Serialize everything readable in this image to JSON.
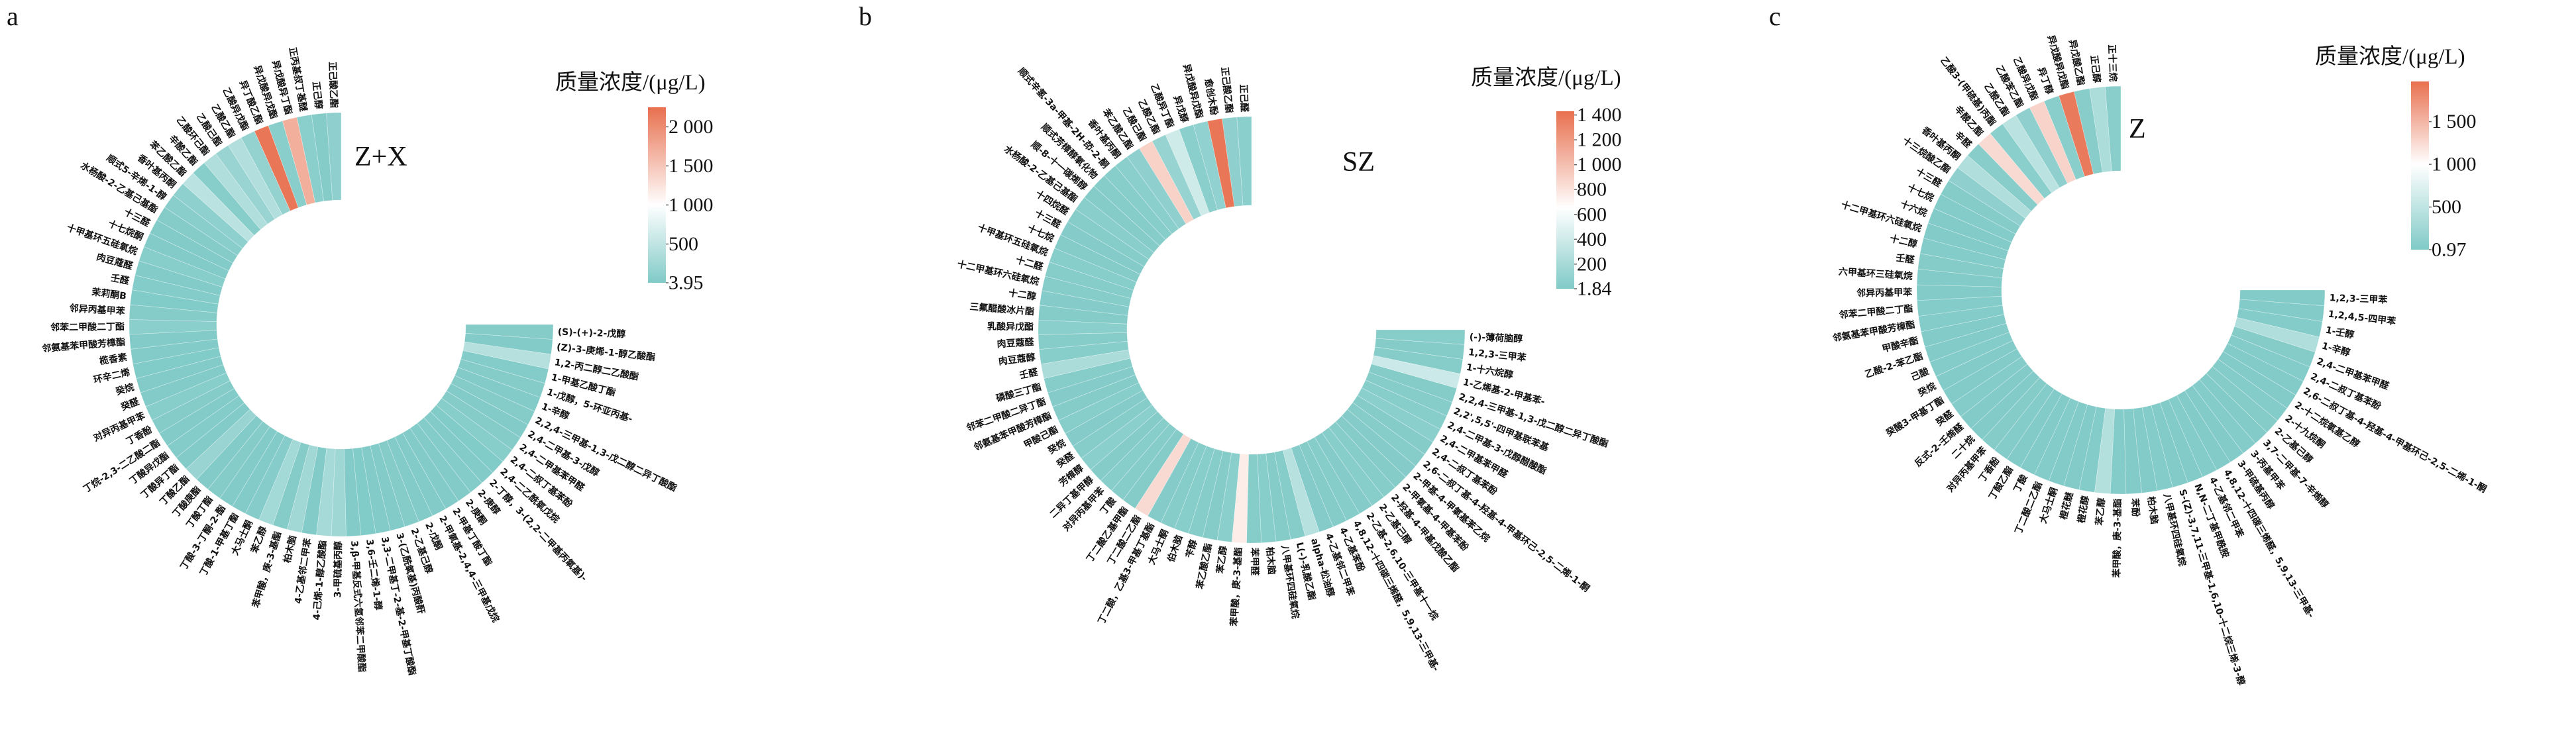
{
  "chart_data": [
    {
      "type": "heatmap",
      "panel_letter": "a",
      "center_label": "Z+X",
      "legend_title": "质量浓度/(μg/L)",
      "legend_ticks": [
        {
          "value": 2000,
          "label": "2 000"
        },
        {
          "value": 1500,
          "label": "1 500"
        },
        {
          "value": 1000,
          "label": "1 000"
        },
        {
          "value": 500,
          "label": "500"
        },
        {
          "value": 3.95,
          "label": "3.95"
        }
      ],
      "scale_min": 3.95,
      "scale_mid": 1000,
      "scale_max": 2250,
      "colors": {
        "low": "#80cac7",
        "mid": "#ffffff",
        "high": "#e8704f"
      },
      "categories": [
        "正己酸乙酯",
        "正己醇",
        "正丙基叔丁基醚",
        "异戊酸异丁酯",
        "异戊酸异戊酯",
        "异丁酸乙酯",
        "乙酸异戊酯",
        "乙酸乙酯",
        "乙酸己酯",
        "乙酸环己酯",
        "辛酸乙酯",
        "苯乙酸乙酯",
        "香叶基丙酮",
        "顺式5-辛烯-1-醇",
        "水杨酸-2-乙基己基酯",
        "十三醛",
        "十七烷酮",
        "十甲基环五硅氧烷",
        "肉豆蔻醛",
        "壬醛",
        "茉莉酮B",
        "邻异丙基甲苯",
        "邻苯二甲酸二丁酯",
        "邻氨基苯甲酸芳樟酯",
        "榄香素",
        "环辛二烯",
        "癸烷",
        "癸醛",
        "对异丙基甲苯",
        "丁香酚",
        "丁烷-2,3-二乙酸二酯",
        "丁酸异戊酯",
        "丁酸异丁酯",
        "丁酸乙酯",
        "丁酸庚酯",
        "丁酸丁酯",
        "丁酸-3-丁酮-2-酯",
        "丁酸-1-甲基丁酯",
        "大马士酮",
        "苯乙醇",
        "苯甲酸，庚-3-基酯",
        "柏木脑",
        "4-乙基邻二甲苯",
        "4-己烯-1-醇乙酸酯",
        "3-甲硫基丙醇",
        "3,β-甲基反式六氢邻苯二甲酸酯",
        "3,6-壬二烯-1-醇",
        "3,3-二甲基丁-2-基-2-甲基丁酸酯",
        "3-(乙酰氧基)丙酸酐",
        "2-乙基己醇",
        "2-戊酮",
        "2-甲氧基-2,4,4-三甲基戊烷",
        "2-甲基丁酸丁酯",
        "2-庚酮",
        "2-庚醇",
        "2-丁醇，3-(2,2-二甲基丙氧基)-",
        "2,4-二乙酰氧戊烷",
        "2,4-二叔丁基苯酚",
        "2,4-二甲基苯甲醛",
        "2,4-二甲基-3-戊醇",
        "2,2,4-三甲基-1,3-戊二醇二异丁酸酯",
        "1-辛醇",
        "1-戊醇，5-环亚丙基-",
        "1-甲基乙酸丁酯",
        "1,2-丙二醇二乙酸酯",
        "(Z)-3-庚烯-1-醇乙酸酯",
        "(S)-(+)-2-戊醇"
      ],
      "values": [
        120,
        40,
        90,
        1700,
        80,
        2200,
        150,
        400,
        200,
        380,
        60,
        450,
        110,
        80,
        40,
        30,
        25,
        60,
        20,
        35,
        15,
        40,
        90,
        30,
        20,
        15,
        30,
        25,
        60,
        40,
        20,
        35,
        30,
        200,
        25,
        45,
        30,
        20,
        50,
        280,
        40,
        260,
        20,
        300,
        250,
        20,
        15,
        30,
        25,
        40,
        20,
        30,
        25,
        20,
        35,
        30,
        15,
        60,
        40,
        30,
        45,
        20,
        40,
        35,
        420,
        30,
        40
      ]
    },
    {
      "type": "heatmap",
      "panel_letter": "b",
      "center_label": "SZ",
      "legend_title": "质量浓度/(μg/L)",
      "legend_ticks": [
        {
          "value": 1400,
          "label": "1 400"
        },
        {
          "value": 1200,
          "label": "1 200"
        },
        {
          "value": 1000,
          "label": "1 000"
        },
        {
          "value": 800,
          "label": "800"
        },
        {
          "value": 600,
          "label": "600"
        },
        {
          "value": 400,
          "label": "400"
        },
        {
          "value": 200,
          "label": "200"
        },
        {
          "value": 1.84,
          "label": "1.84"
        }
      ],
      "scale_min": 1.84,
      "scale_mid": 650,
      "scale_max": 1430,
      "colors": {
        "low": "#80cac7",
        "mid": "#ffffff",
        "high": "#e8704f"
      },
      "categories": [
        "正己醛",
        "正己酸乙酯",
        "愈创木酚",
        "异戊酸异戊酯",
        "异戊醇",
        "乙酸异丁酯",
        "乙酸乙酯",
        "乙酸己酯",
        "苯乙酸乙酯",
        "香叶基丙酮",
        "顺式辛氢-3a-甲基-2H-茚-2-酮",
        "顺式芳樟醇氧化物",
        "顺-8-十一碳烯醇",
        "水杨酸-2-乙基己基酯",
        "十四烷醛",
        "十三醛",
        "十七烷",
        "十甲基环五硅氧烷",
        "十二醛",
        "十二甲基环六硅氧烷",
        "十二醇",
        "三氟醋酸冰片酯",
        "乳酸异戊酯",
        "肉豆蔻醛",
        "肉豆蔻醇",
        "壬醛",
        "磷酸三丁酯",
        "邻苯二甲酸二异丁酯",
        "邻氨基苯甲酸芳樟酯",
        "甲酸己酯",
        "癸烷",
        "癸醛",
        "芳樟醇",
        "二异丁基甲醇",
        "对异丙基甲苯",
        "丁酸",
        "丁二酸乙基甲酯",
        "丁二酸二乙酯",
        "丁二酸，乙基3-甲基丁基酯",
        "大马士酮",
        "伯木脑",
        "苄醇",
        "苯乙酸乙酯",
        "苯乙醇",
        "苯甲酸，庚-3-基酯",
        "苯甲醛",
        "柏木脑",
        "八甲基环四硅氧烷",
        "L(-)-乳酸乙酯",
        "alpha-松油醇",
        "4-乙基邻二甲苯",
        "4-乙基苯酚",
        "4,8,12-十四碳三烯醛，5,9,13-三甲基-",
        "2-乙基-2,6,10-三甲基十一烷",
        "2-乙基己醇",
        "2-羟基-4-甲基戊酸乙酯",
        "2-甲氧基-4-甲基苯酚",
        "2-甲基-4-甲氧基苯乙烷",
        "2,6-二叔丁基-4-羟基-4-甲基环己-2,5-二烯-1-酮",
        "2,4-二叔丁基苯酚",
        "2,4-二甲基苯甲醛",
        "2,4-二甲基-3-戊醇醋酸酯",
        "2,2',5,5'-四甲基联苯基",
        "2,2,4-三甲基-1,3-戊二醇二异丁酸酯",
        "1-乙烯基-2-甲基苯-",
        "1-十六烷醇",
        "1,2,3-三甲苯",
        "(-)-薄荷脑醇"
      ],
      "values": [
        60,
        80,
        1400,
        90,
        60,
        400,
        120,
        900,
        80,
        60,
        40,
        30,
        25,
        50,
        30,
        20,
        25,
        40,
        30,
        35,
        20,
        25,
        60,
        30,
        40,
        220,
        30,
        20,
        25,
        40,
        20,
        30,
        60,
        25,
        40,
        30,
        25,
        850,
        20,
        30,
        40,
        35,
        25,
        60,
        750,
        30,
        40,
        25,
        30,
        280,
        20,
        25,
        30,
        20,
        40,
        30,
        25,
        20,
        30,
        25,
        60,
        40,
        30,
        25,
        380,
        30,
        25,
        40
      ]
    },
    {
      "type": "heatmap",
      "panel_letter": "c",
      "center_label": "Z",
      "legend_title": "质量浓度/(μg/L)",
      "legend_ticks": [
        {
          "value": 1500,
          "label": "1 500"
        },
        {
          "value": 1000,
          "label": "1 000"
        },
        {
          "value": 500,
          "label": "500"
        },
        {
          "value": 0.97,
          "label": "0.97"
        }
      ],
      "scale_min": 0.97,
      "scale_mid": 1000,
      "scale_max": 1970,
      "colors": {
        "low": "#80cac7",
        "mid": "#ffffff",
        "high": "#e8704f"
      },
      "categories": [
        "正十三烷",
        "正己醇",
        "异戊酸乙酯",
        "异戊酸异戊酯",
        "异丁醇",
        "乙酸异戊酯",
        "乙酸苯乙酯",
        "乙酸乙酯",
        "乙酸3-(甲硫基)丙酯",
        "辛酸乙酯",
        "辛醛",
        "香叶基丙酮",
        "十三烷酸乙酯",
        "十三醛",
        "十七烷",
        "十六烷",
        "十二甲基环六硅氧烷",
        "十二醇",
        "壬醛",
        "六甲基环三硅氧烷",
        "邻异丙基甲苯",
        "邻苯二甲酸二丁酯",
        "邻氨基苯甲酸芳樟酯",
        "甲酸辛酯",
        "乙酸-2-苯乙酯",
        "己酸",
        "癸烷",
        "癸酸3-甲基丁酯",
        "癸醛",
        "反式-2-壬烯醛",
        "二十烷",
        "对异丙基甲苯",
        "丁香酚",
        "丁酸乙酯",
        "丁酸",
        "丁二酸二乙酯",
        "大马士酮",
        "橙花醚",
        "橙花醇",
        "苯乙醇",
        "苯甲酸，庚-3-基酯",
        "苯酚",
        "柏木脑",
        "八甲基环四硅氧烷",
        "S-(Z)-3,7,11-三甲基-1,6,10-十二烷三烯-3-醇",
        "N,N-二丁基甲酰胺",
        "4-乙基邻二甲苯",
        "4,8,12-十四碳三烯醛，5,9,13-三甲基-",
        "3-甲硫基丙醇",
        "3-丙基甲苯",
        "3,7-二甲基-7-辛烯醇",
        "2-乙基己醇",
        "2-十九烷酮",
        "2-十二烷氧基乙醇",
        "2,6-二叔丁基-4-羟基-4-甲基环己-2,5-二烯-1-酮",
        "2,4-二叔丁基苯酚",
        "2,4-二甲基苯甲醛",
        "1-辛醇",
        "1-壬醇",
        "1,2,4,5-四甲苯",
        "1,2,3-三甲苯"
      ],
      "values": [
        80,
        350,
        60,
        1900,
        80,
        1300,
        120,
        450,
        90,
        1250,
        60,
        380,
        120,
        40,
        30,
        25,
        20,
        30,
        40,
        25,
        20,
        35,
        30,
        25,
        20,
        30,
        25,
        20,
        30,
        25,
        20,
        40,
        30,
        25,
        20,
        30,
        25,
        20,
        30,
        400,
        30,
        25,
        20,
        30,
        25,
        20,
        30,
        25,
        20,
        30,
        25,
        40,
        30,
        25,
        20,
        30,
        40,
        380,
        30,
        25,
        20
      ]
    }
  ]
}
